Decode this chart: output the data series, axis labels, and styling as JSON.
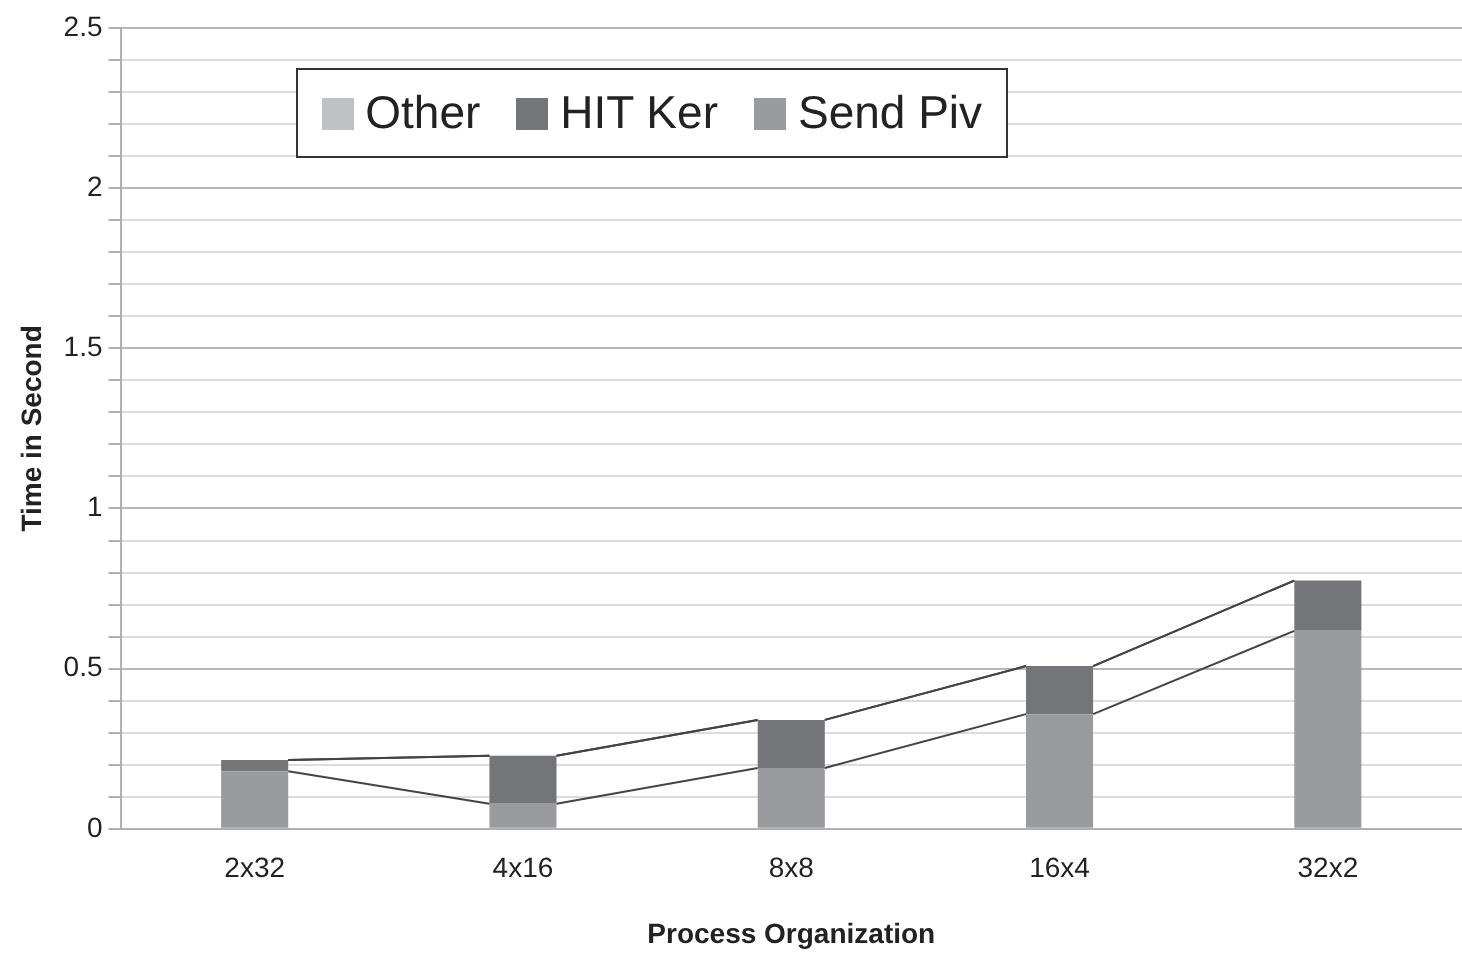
{
  "chart_data": {
    "type": "bar",
    "stacked": true,
    "xlabel": "Process Organization",
    "ylabel": "Time in Second",
    "categories": [
      "2x32",
      "4x16",
      "8x8",
      "16x4",
      "32x2"
    ],
    "series": [
      {
        "name": "Send Piv",
        "color": "#9a9b9f",
        "values": [
          0.18,
          0.078,
          0.19,
          0.358,
          0.618
        ]
      },
      {
        "name": "HIT Ker",
        "color": "#747578",
        "values": [
          0.035,
          0.15,
          0.15,
          0.15,
          0.157
        ]
      },
      {
        "name": "Other",
        "color": "#c0c1c4",
        "values": [
          0,
          0,
          0,
          0,
          0
        ]
      }
    ],
    "ylim": [
      0,
      2.5
    ],
    "yticks": [
      0,
      {
        "value": 0.1,
        "label": null
      },
      {
        "value": 0.2,
        "label": null
      },
      {
        "value": 0.3,
        "label": null
      },
      {
        "value": 0.4,
        "label": null
      },
      0.5,
      {
        "value": 0.6,
        "label": null
      },
      {
        "value": 0.7,
        "label": null
      },
      {
        "value": 0.8,
        "label": null
      },
      {
        "value": 0.9,
        "label": null
      },
      1,
      {
        "value": 1.1,
        "label": null
      },
      {
        "value": 1.2,
        "label": null
      },
      {
        "value": 1.3,
        "label": null
      },
      {
        "value": 1.4,
        "label": null
      },
      1.5,
      {
        "value": 1.6,
        "label": null
      },
      {
        "value": 1.7,
        "label": null
      },
      {
        "value": 1.8,
        "label": null
      },
      {
        "value": 1.9,
        "label": null
      },
      2,
      {
        "value": 2.1,
        "label": null
      },
      {
        "value": 2.2,
        "label": null
      },
      {
        "value": 2.3,
        "label": null
      },
      {
        "value": 2.4,
        "label": null
      },
      2.5
    ],
    "grid": "y",
    "legend": "top"
  }
}
